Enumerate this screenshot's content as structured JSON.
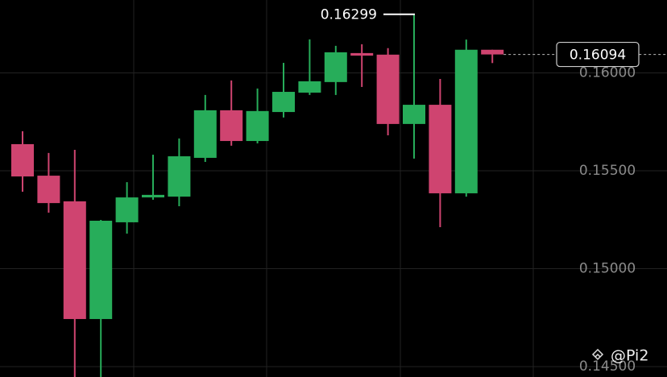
{
  "chart_data": {
    "type": "candlestick",
    "open": [
      0.15636,
      0.15475,
      0.15344,
      0.14743,
      0.15237,
      0.15364,
      0.15368,
      0.15566,
      0.15809,
      0.15652,
      0.158,
      0.15899,
      0.15953,
      0.16101,
      0.16093,
      0.15739,
      0.15837,
      0.15385,
      0.16118
    ],
    "high": [
      0.15702,
      0.15591,
      0.15607,
      0.15249,
      0.15442,
      0.15582,
      0.15665,
      0.15887,
      0.15961,
      0.1592,
      0.16051,
      0.16171,
      0.16138,
      0.16146,
      0.16126,
      0.16299,
      0.15969,
      0.1617,
      0.16118
    ],
    "low": [
      0.15393,
      0.15286,
      0.14447,
      0.14447,
      0.15179,
      0.15352,
      0.15319,
      0.15545,
      0.15628,
      0.1564,
      0.15772,
      0.15887,
      0.15887,
      0.15928,
      0.15681,
      0.15562,
      0.15212,
      0.15368,
      0.1605
    ],
    "close": [
      0.15471,
      0.15335,
      0.14743,
      0.15245,
      0.15364,
      0.15377,
      0.15574,
      0.15809,
      0.15652,
      0.15805,
      0.15903,
      0.15957,
      0.16105,
      0.16088,
      0.15739,
      0.15837,
      0.15385,
      0.16118,
      0.16094
    ],
    "up_color": "#27ad5a",
    "down_color": "#cf4470",
    "ylim": [
      0.14447,
      0.16372
    ],
    "yticks": [
      {
        "value": 0.145,
        "label": "0.14500"
      },
      {
        "value": 0.15,
        "label": "0.15000"
      },
      {
        "value": 0.155,
        "label": "0.15500"
      },
      {
        "value": 0.16,
        "label": "0.16000"
      }
    ],
    "grid": true,
    "watermark": "@Pi2"
  }
}
